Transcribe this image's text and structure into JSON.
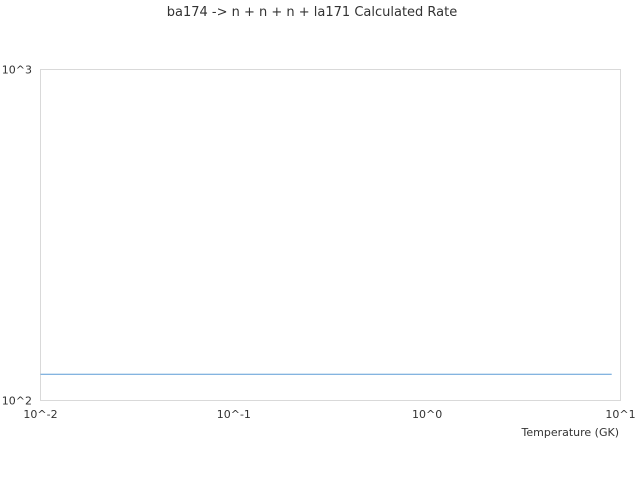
{
  "chart_data": {
    "type": "line",
    "title": "ba174 -> n + n + n + la171 Calculated Rate",
    "xlabel": "Temperature (GK)",
    "ylabel": "",
    "x_scale": "log",
    "y_scale": "log",
    "xlim": [
      0.01,
      10
    ],
    "ylim": [
      100,
      1000
    ],
    "x_ticks": [
      {
        "value": 0.01,
        "label": "10^-2"
      },
      {
        "value": 0.1,
        "label": "10^-1"
      },
      {
        "value": 1,
        "label": "10^0"
      },
      {
        "value": 10,
        "label": "10^1"
      }
    ],
    "y_ticks": [
      {
        "value": 100,
        "label": "10^2"
      },
      {
        "value": 1000,
        "label": "10^3"
      }
    ],
    "grid": false,
    "series": [
      {
        "x": [
          0.01,
          0.1,
          1,
          9
        ],
        "y": [
          120,
          120,
          120,
          120
        ],
        "color": "#5b9bd5"
      }
    ]
  }
}
